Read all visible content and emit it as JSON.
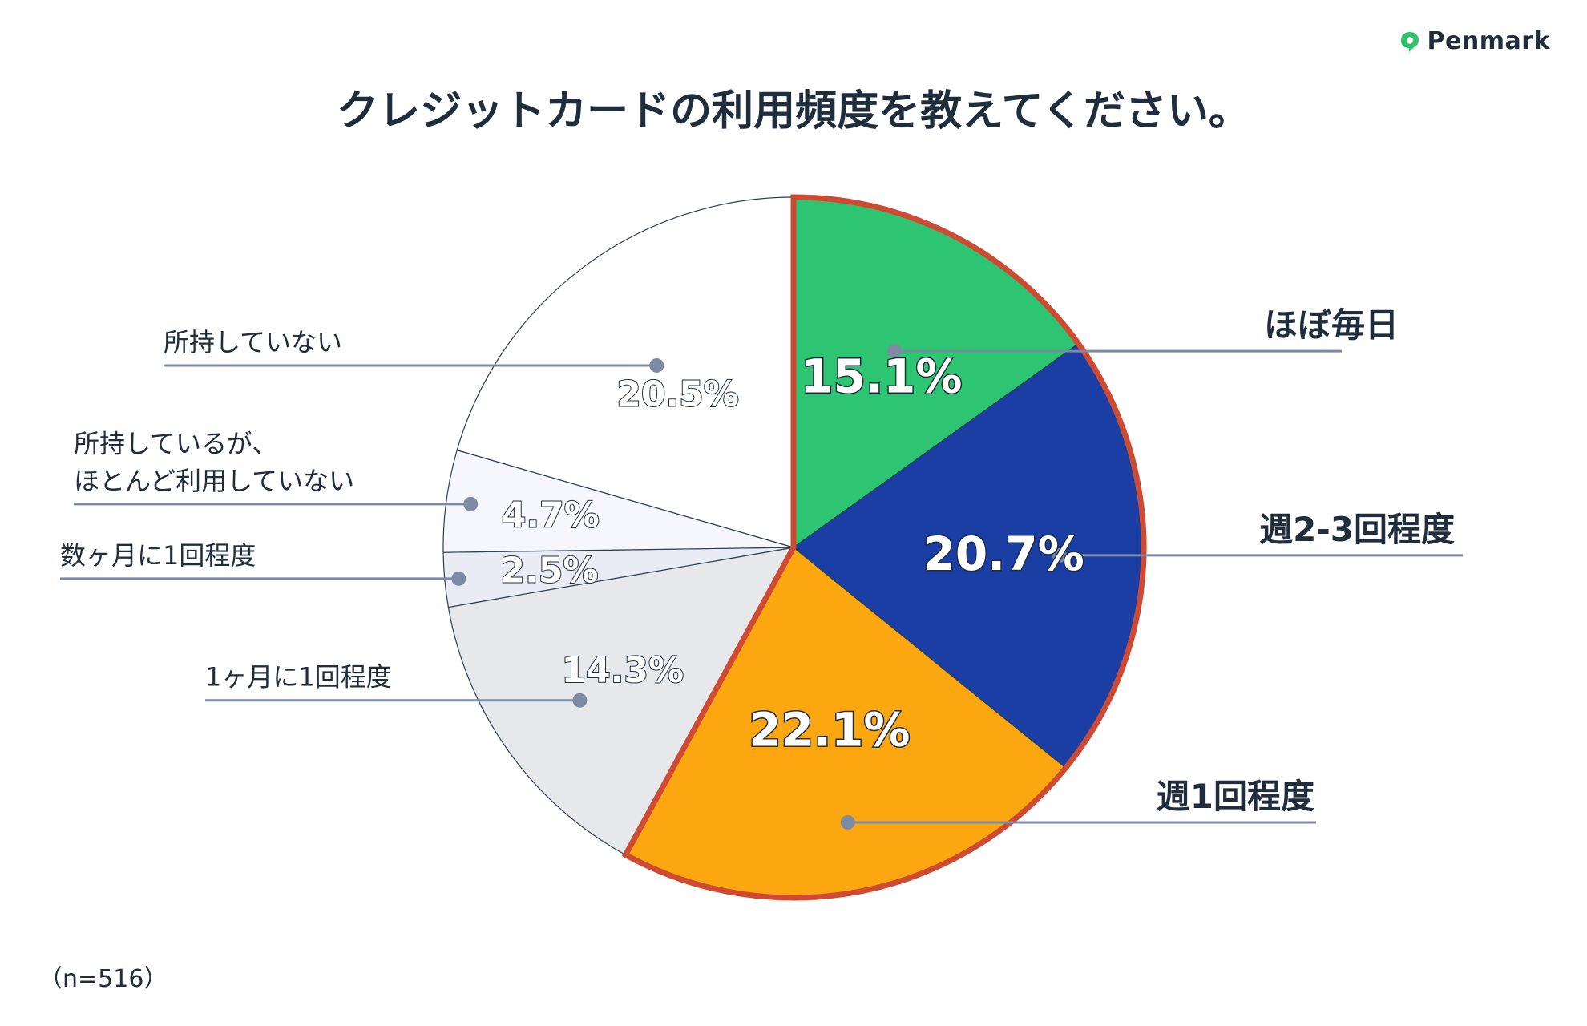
{
  "brand": {
    "name": "Penmark",
    "icon": "speech-bubble-icon",
    "color": "#2ec26b"
  },
  "title": "クレジットカードの利用頻度を教えてください。",
  "note": "（n=516）",
  "chart_data": {
    "type": "pie",
    "title": "クレジットカードの利用頻度を教えてください。",
    "start": "12 o'clock, clockwise",
    "highlight": "ほぼ毎日 + 週2-3回程度 + 週1回程度 (red outline)",
    "slices": [
      {
        "label": "ほぼ毎日",
        "value": 15.1,
        "display": "15.1%",
        "color": "#2ec572"
      },
      {
        "label": "週2-3回程度",
        "value": 20.7,
        "display": "20.7%",
        "color": "#1a3ea3"
      },
      {
        "label": "週1回程度",
        "value": 22.1,
        "display": "22.1%",
        "color": "#fca710"
      },
      {
        "label": "1ヶ月に1回程度",
        "value": 14.3,
        "display": "14.3%",
        "color": "#e6e8eb"
      },
      {
        "label": "数ヶ月に1回程度",
        "value": 2.5,
        "display": "2.5%",
        "color": "#e9ebf5"
      },
      {
        "label": "所持しているが、\nほとんど利用していない",
        "value": 4.7,
        "display": "4.7%",
        "color": "#f6f7fc"
      },
      {
        "label": "所持していない",
        "value": 20.5,
        "display": "20.5%",
        "color": "#ffffff"
      }
    ]
  }
}
